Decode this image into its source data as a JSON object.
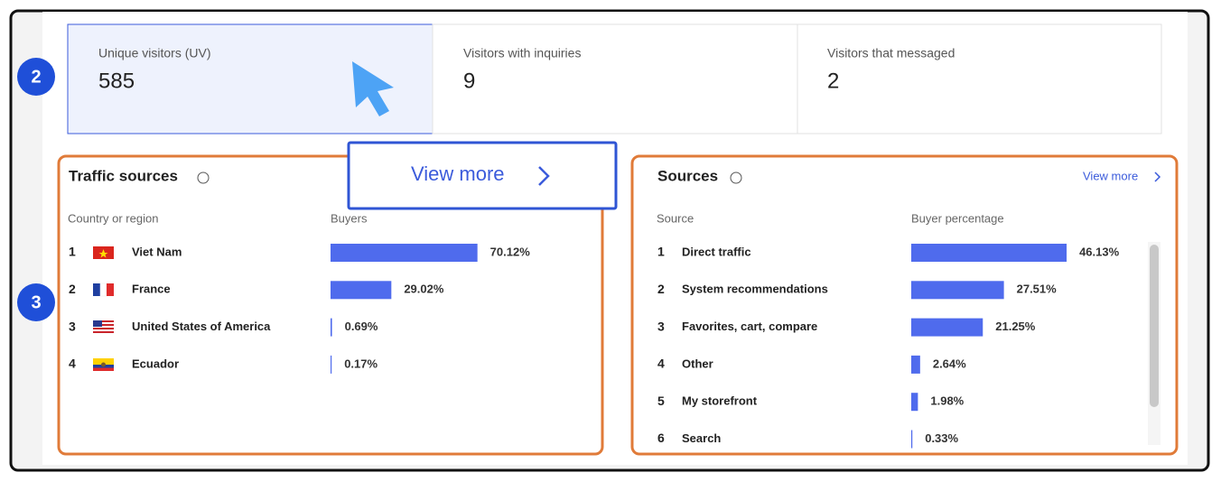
{
  "annotations": [
    "2",
    "3"
  ],
  "metrics": [
    {
      "label": "Unique visitors (UV)",
      "value": 585
    },
    {
      "label": "Visitors with inquiries",
      "value": 9
    },
    {
      "label": "Visitors that messaged",
      "value": 2
    }
  ],
  "callout": {
    "label": "View more"
  },
  "traffic_sources": {
    "title": "Traffic sources",
    "columns": [
      "Country or region",
      "Buyers"
    ],
    "ranks": [
      1,
      2,
      3,
      4
    ],
    "names": [
      "Viet Nam",
      "France",
      "United States of America",
      "Ecuador"
    ],
    "values": [
      70.12,
      29.02,
      0.69,
      0.17
    ],
    "value_labels": [
      "70.12%",
      "29.02%",
      "0.69%",
      "0.17%"
    ]
  },
  "sources": {
    "title": "Sources",
    "view_more": "View more",
    "columns": [
      "Source",
      "Buyer percentage"
    ],
    "ranks": [
      1,
      2,
      3,
      4,
      5,
      6
    ],
    "names": [
      "Direct traffic",
      "System recommendations",
      "Favorites, cart, compare",
      "Other",
      "My storefront",
      "Search"
    ],
    "values": [
      46.13,
      27.51,
      21.25,
      2.64,
      1.98,
      0.33
    ],
    "value_labels": [
      "46.13%",
      "27.51%",
      "21.25%",
      "2.64%",
      "1.98%",
      "0.33%"
    ]
  }
}
